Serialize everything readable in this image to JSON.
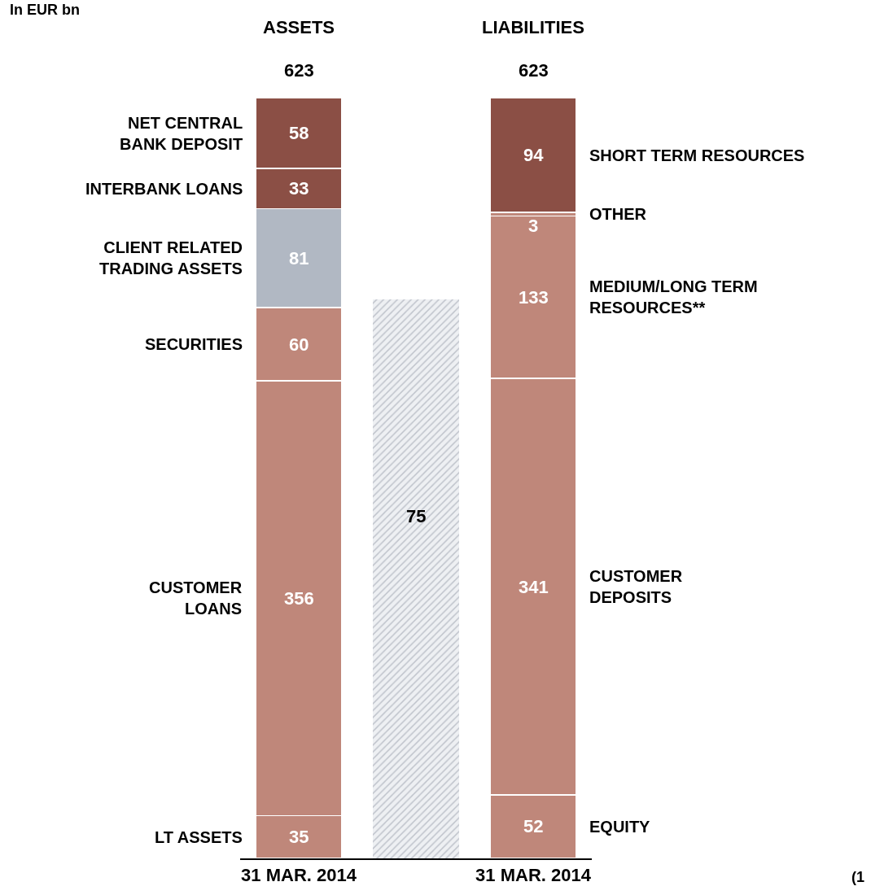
{
  "chart_data": {
    "type": "bar",
    "stacked": true,
    "categories": [
      "31 MAR. 2014",
      null,
      "31 MAR. 2014"
    ],
    "ylim": [
      0,
      623
    ],
    "tick_labels": "x",
    "legend": false,
    "series": [
      {
        "name": "LT ASSETS",
        "color": "#bf877a",
        "values": [
          35,
          null,
          null
        ],
        "value_labels": [
          "35",
          null,
          null
        ]
      },
      {
        "name": "CUSTOMER\nLOANS",
        "color": "#bf877a",
        "values": [
          356,
          null,
          null
        ],
        "value_labels": [
          "356",
          null,
          null
        ]
      },
      {
        "name": "SECURITIES",
        "color": "#bf877a",
        "values": [
          60,
          null,
          null
        ],
        "value_labels": [
          "60",
          null,
          null
        ]
      },
      {
        "name": "CLIENT RELATED\nTRADING ASSETS",
        "color": "#b1b8c3",
        "values": [
          81,
          null,
          null
        ],
        "value_labels": [
          "81",
          null,
          null
        ]
      },
      {
        "name": "INTERBANK LOANS",
        "color": "#8b4f45",
        "values": [
          33,
          null,
          null
        ],
        "value_labels": [
          "33",
          null,
          null
        ]
      },
      {
        "name": "NET CENTRAL\nBANK DEPOSIT",
        "color": "#8b4f45",
        "values": [
          58,
          null,
          null
        ],
        "value_labels": [
          "58",
          null,
          null
        ]
      },
      {
        "color": "#c3c7cf",
        "values": [
          null,
          458,
          null
        ],
        "value_labels": [
          null,
          null,
          null
        ]
      },
      {
        "name": "EQUITY",
        "color": "#bf877a",
        "values": [
          null,
          null,
          52
        ],
        "value_labels": [
          null,
          null,
          "52"
        ]
      },
      {
        "name": "CUSTOMER\nDEPOSITS",
        "color": "#bf877a",
        "values": [
          null,
          null,
          341
        ],
        "value_labels": [
          null,
          null,
          "341"
        ]
      },
      {
        "name": "MEDIUM/LONG TERM\nRESOURCES**",
        "color": "#bf877a",
        "values": [
          null,
          null,
          133
        ],
        "value_labels": [
          null,
          null,
          "133"
        ]
      },
      {
        "name": "OTHER",
        "color": "#bf877a",
        "values": [
          null,
          null,
          3
        ],
        "value_labels": [
          null,
          null,
          "3"
        ]
      },
      {
        "name": "SHORT TERM RESOURCES",
        "color": "#8b4f45",
        "values": [
          null,
          null,
          94
        ],
        "value_labels": [
          null,
          null,
          "94"
        ]
      }
    ],
    "totals": [
      "623",
      null,
      "623"
    ],
    "annotations": [
      "In EUR bn",
      "ASSETS",
      "LIABILITIES",
      "75",
      "(1"
    ]
  }
}
